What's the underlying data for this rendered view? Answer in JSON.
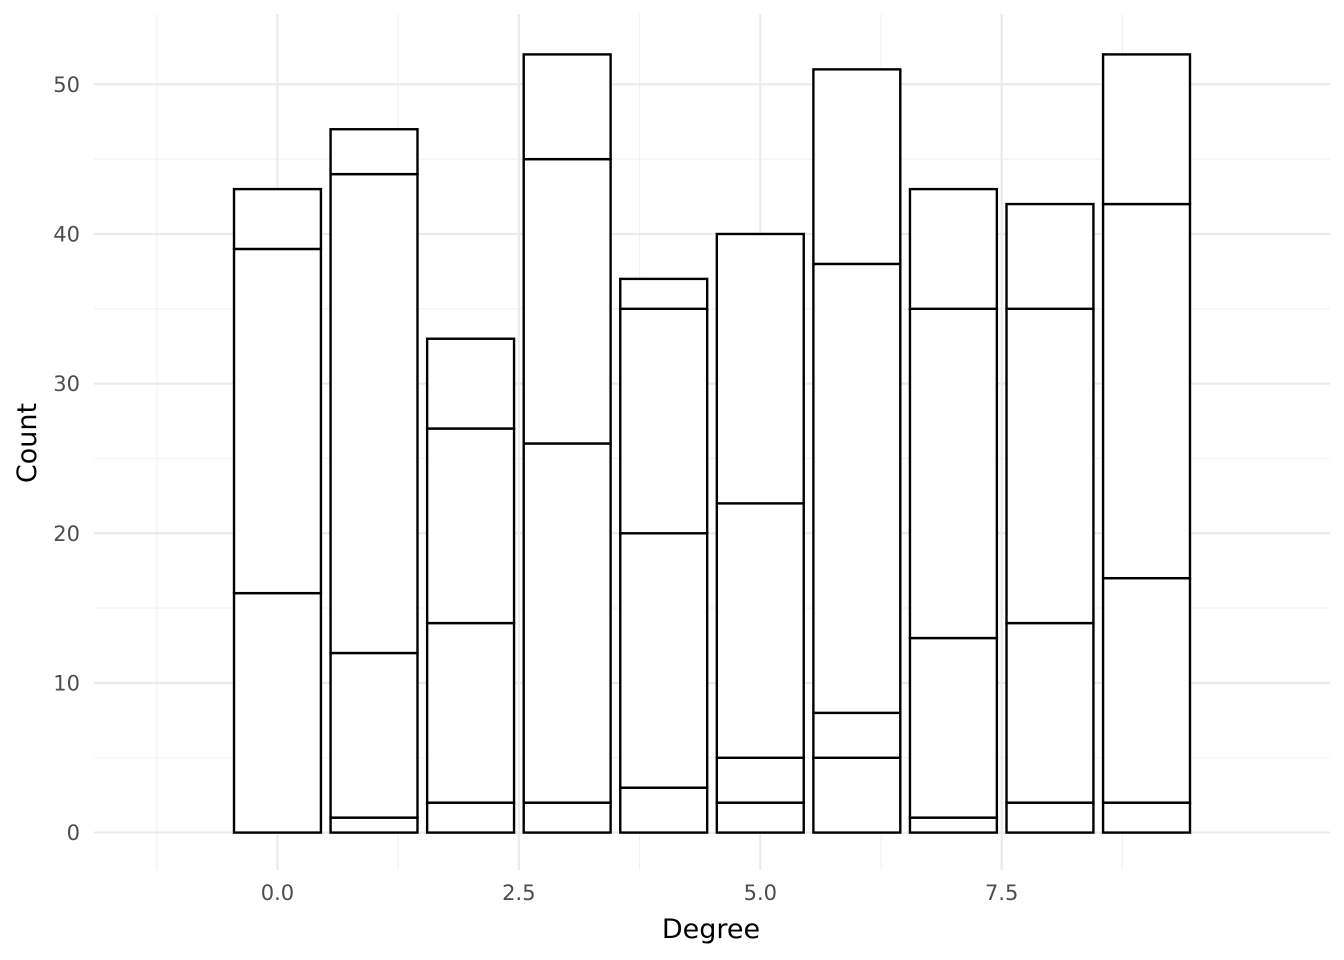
{
  "chart_data": {
    "type": "bar",
    "stacked": true,
    "xlabel": "Degree",
    "ylabel": "Count",
    "xlim": [
      -1.9,
      10.9
    ],
    "ylim": [
      -2.5,
      54.7
    ],
    "x_ticks": [
      0.0,
      2.5,
      5.0,
      7.5
    ],
    "x_tick_labels": [
      "0.0",
      "2.5",
      "5.0",
      "7.5"
    ],
    "y_ticks": [
      0,
      10,
      20,
      30,
      40,
      50
    ],
    "y_tick_labels": [
      "0",
      "10",
      "20",
      "30",
      "40",
      "50"
    ],
    "bar_width": 0.9,
    "fill_color": "#ffffff",
    "outline_color": "#000000",
    "grid": true,
    "legend": "none",
    "bars": [
      {
        "x": 0,
        "segments": [
          16,
          23,
          4
        ]
      },
      {
        "x": 1,
        "segments": [
          1,
          11,
          32,
          3
        ]
      },
      {
        "x": 2,
        "segments": [
          2,
          12,
          13,
          6
        ]
      },
      {
        "x": 3,
        "segments": [
          2,
          24,
          19,
          7
        ]
      },
      {
        "x": 4,
        "segments": [
          3,
          17,
          15,
          2
        ]
      },
      {
        "x": 5,
        "segments": [
          2,
          3,
          17,
          18
        ]
      },
      {
        "x": 6,
        "segments": [
          5,
          3,
          30,
          13
        ]
      },
      {
        "x": 7,
        "segments": [
          1,
          12,
          22,
          8
        ]
      },
      {
        "x": 8,
        "segments": [
          2,
          12,
          21,
          7
        ]
      },
      {
        "x": 9,
        "segments": [
          2,
          15,
          25,
          10
        ]
      }
    ],
    "totals": [
      43,
      47,
      33,
      52,
      37,
      40,
      51,
      43,
      42,
      52
    ]
  }
}
